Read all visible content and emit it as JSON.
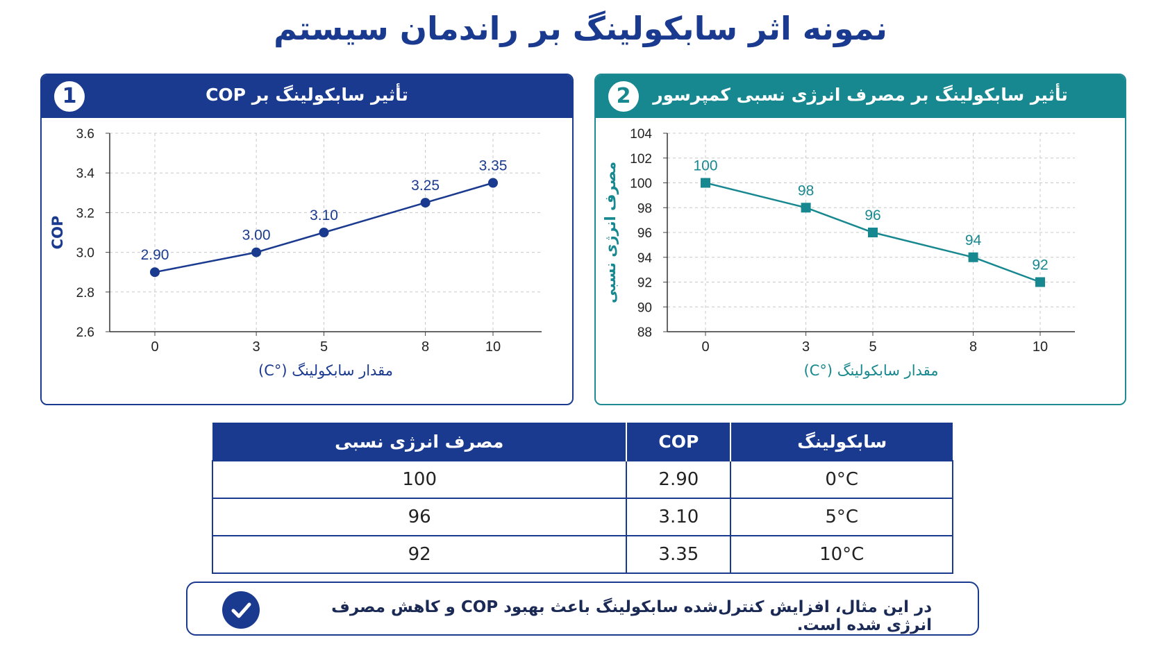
{
  "title": "نمونه اثر سابکولینگ بر راندمان سیستم",
  "panel1": {
    "number": "1",
    "title": "تأثیر سابکولینگ بر COP",
    "colors": {
      "accent": "#1a3a8f"
    }
  },
  "panel2": {
    "number": "2",
    "title": "تأثیر سابکولینگ بر مصرف انرژی نسبی کمپرسور",
    "colors": {
      "accent": "#17888f"
    }
  },
  "chart_data": [
    {
      "type": "line",
      "title": "تأثیر سابکولینگ بر COP",
      "xlabel": "مقدار سابکولینگ (°C)",
      "ylabel": "COP",
      "categories": [
        "0",
        "3",
        "5",
        "8",
        "10"
      ],
      "x": [
        0,
        3,
        5,
        8,
        10
      ],
      "y": [
        2.9,
        3.0,
        3.1,
        3.25,
        3.35
      ],
      "data_labels": [
        "2.90",
        "3.00",
        "3.10",
        "3.25",
        "3.35"
      ],
      "yticks": [
        "2.6",
        "2.8",
        "3.0",
        "3.2",
        "3.4",
        "3.6"
      ],
      "ylim": [
        2.6,
        3.6
      ],
      "marker": "circle",
      "grid": true,
      "color": "#1a3a8f"
    },
    {
      "type": "line",
      "title": "تأثیر سابکولینگ بر مصرف انرژی نسبی کمپرسور",
      "xlabel": "مقدار سابکولینگ (°C)",
      "ylabel": "مصرف انرژی نسبی",
      "categories": [
        "0",
        "3",
        "5",
        "8",
        "10"
      ],
      "x": [
        0,
        3,
        5,
        8,
        10
      ],
      "y": [
        100,
        98,
        96,
        94,
        92
      ],
      "data_labels": [
        "100",
        "98",
        "96",
        "94",
        "92"
      ],
      "yticks": [
        "88",
        "90",
        "92",
        "94",
        "96",
        "98",
        "100",
        "102",
        "104"
      ],
      "ylim": [
        88,
        104
      ],
      "marker": "square",
      "grid": true,
      "color": "#17888f"
    }
  ],
  "table": {
    "headers": [
      "مصرف انرژی نسبی",
      "COP",
      "سابکولینگ"
    ],
    "rows": [
      [
        "100",
        "2.90",
        "0°C"
      ],
      [
        "96",
        "3.10",
        "5°C"
      ],
      [
        "92",
        "3.35",
        "10°C"
      ]
    ]
  },
  "note": {
    "text": "در این مثال، افزایش کنترل‌شده سابکولینگ باعث بهبود COP و کاهش مصرف انرژی شده است.",
    "icon": "check-circle-icon"
  }
}
